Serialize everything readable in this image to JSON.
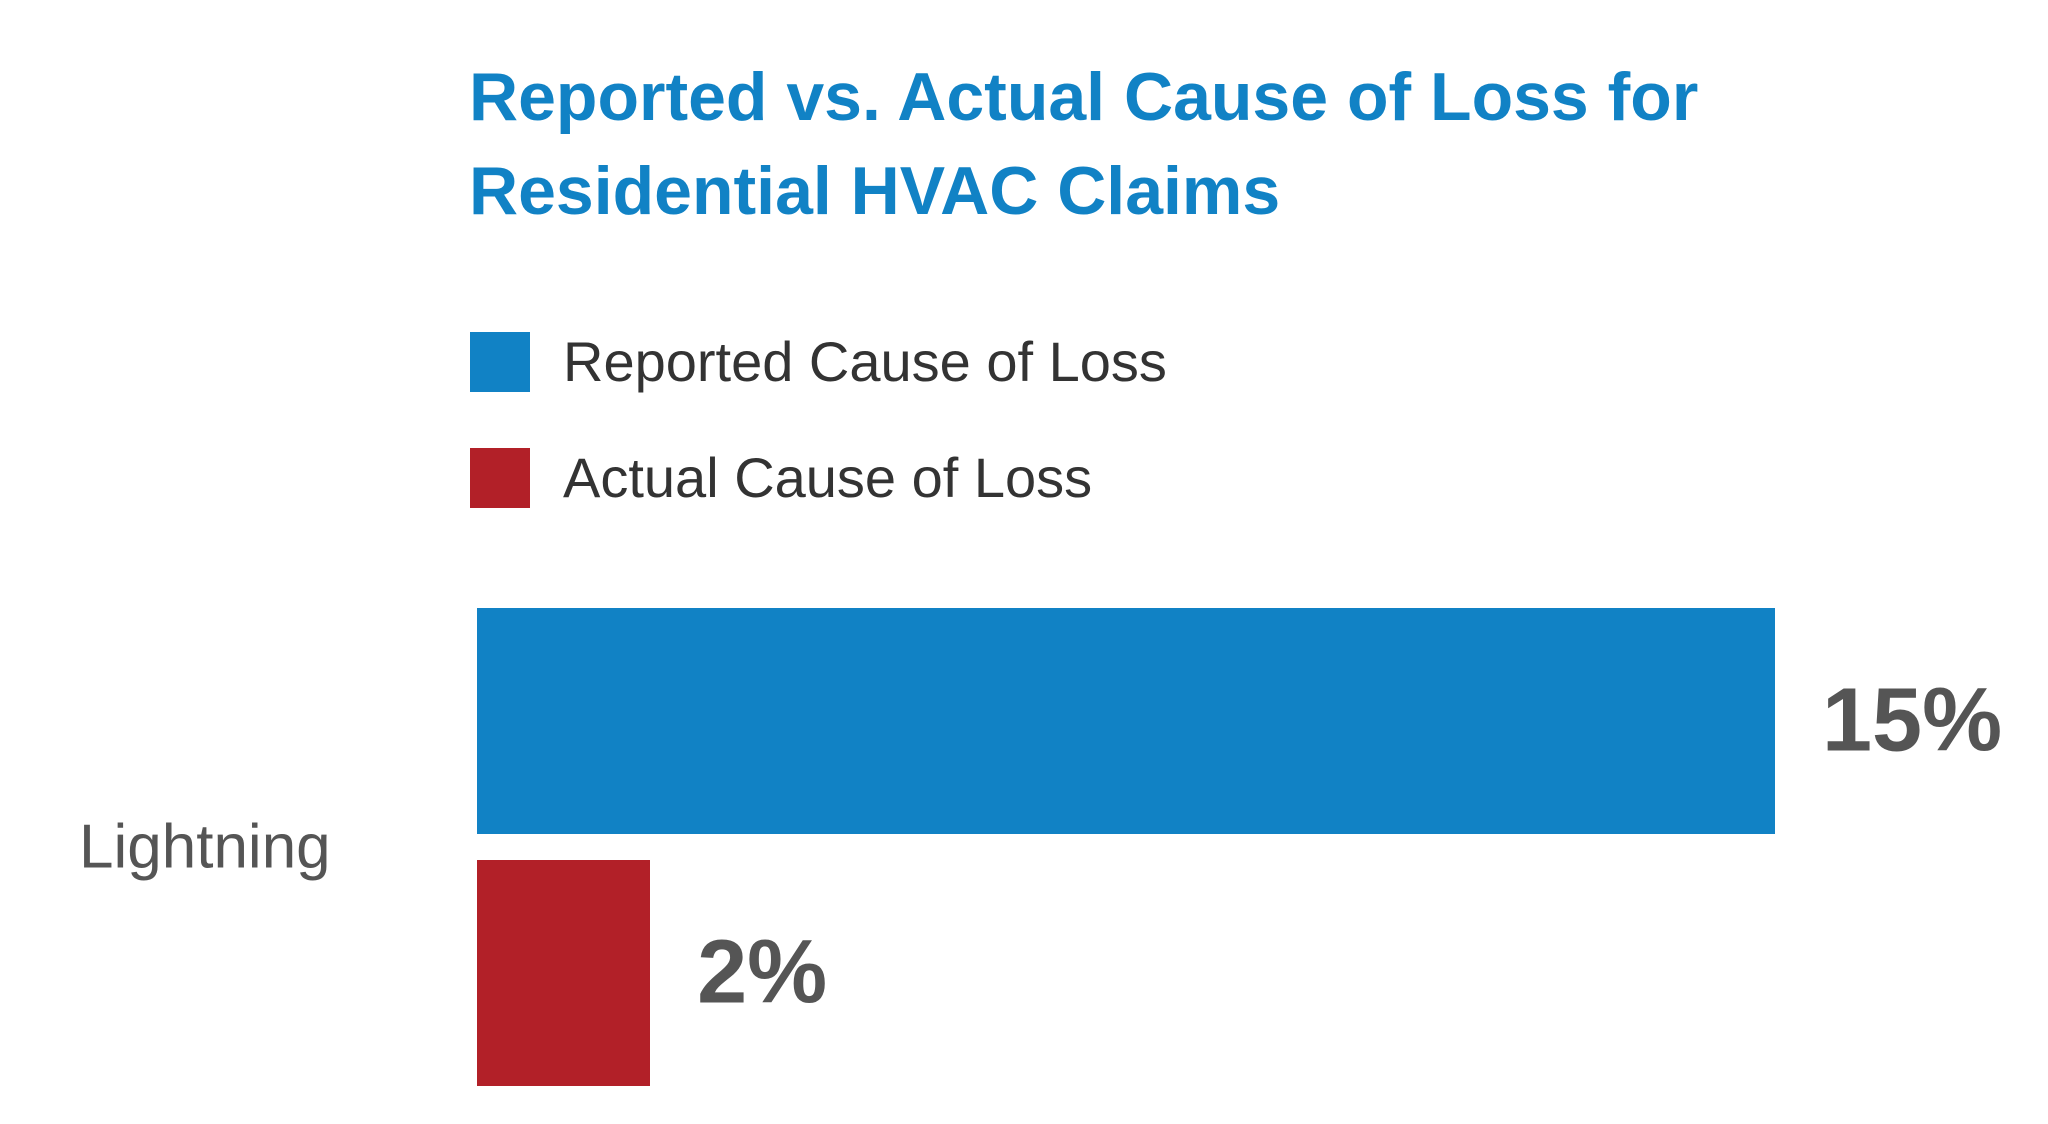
{
  "chart_data": {
    "type": "bar",
    "title": "Reported vs. Actual Cause of Loss for Residential HVAC Claims",
    "categories": [
      "Lightning"
    ],
    "series": [
      {
        "name": "Reported Cause of Loss",
        "color": "#1182c5",
        "values": [
          15
        ],
        "value_labels": [
          "15%"
        ]
      },
      {
        "name": "Actual Cause of Loss",
        "color": "#b22028",
        "values": [
          2
        ],
        "value_labels": [
          "2%"
        ]
      }
    ]
  }
}
